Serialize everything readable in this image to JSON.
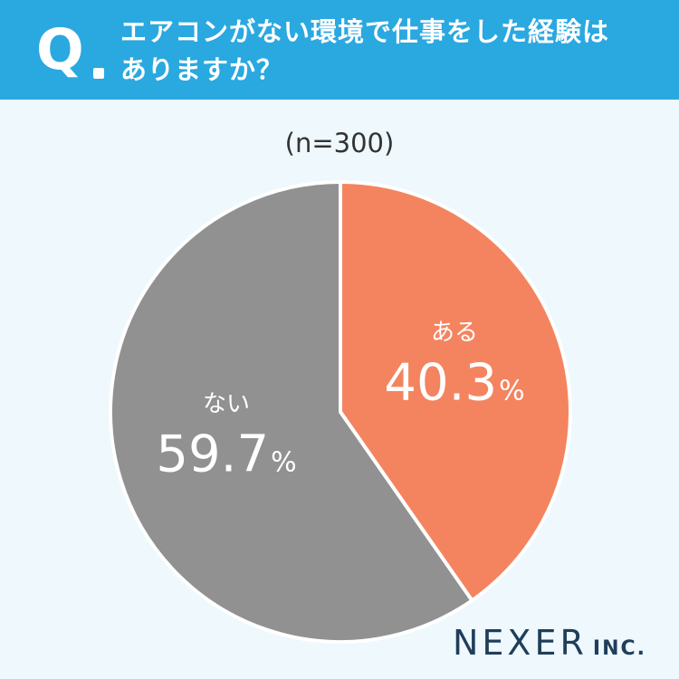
{
  "header": {
    "q_mark": "Q",
    "question_line1": "エアコンがない環境で仕事をした経験は",
    "question_line2": "ありますか？",
    "bg_color": "#2aa8e0"
  },
  "sample_label": "(n=300)",
  "chart_data": {
    "type": "pie",
    "title": "",
    "slices": [
      {
        "label": "ある",
        "value": 40.3,
        "display": "40.3",
        "unit": "%",
        "color": "#f4845f"
      },
      {
        "label": "ない",
        "value": 59.7,
        "display": "59.7",
        "unit": "%",
        "color": "#919191"
      }
    ],
    "start": "top",
    "direction": "clockwise"
  },
  "logo": {
    "main": "NEXER",
    "sub": "INC."
  }
}
